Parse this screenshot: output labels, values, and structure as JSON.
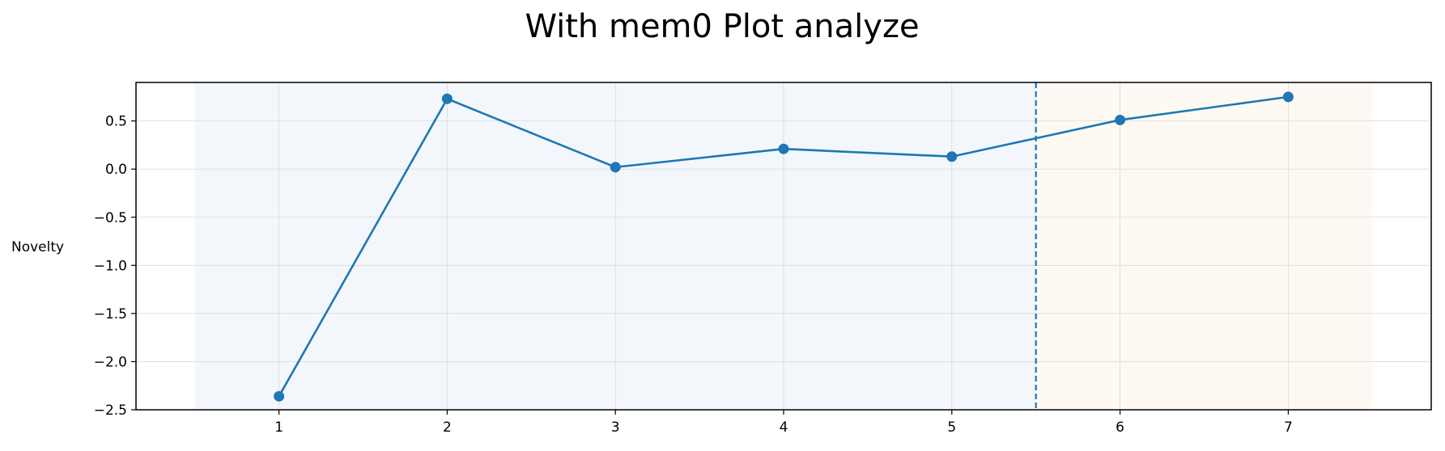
{
  "chart_data": {
    "type": "line",
    "title": "With mem0 Plot analyze",
    "xlabel": "",
    "ylabel": "Novelty",
    "x": [
      1,
      2,
      3,
      4,
      5,
      6,
      7
    ],
    "series": [
      {
        "values": [
          -2.36,
          0.73,
          0.02,
          0.21,
          0.13,
          0.51,
          0.75
        ]
      }
    ],
    "xlim": [
      0.15,
      7.85
    ],
    "ylim": [
      -2.5,
      0.9
    ],
    "xticks": [
      1,
      2,
      3,
      4,
      5,
      6,
      7
    ],
    "xtick_labels": [
      "1",
      "2",
      "3",
      "4",
      "5",
      "6",
      "7"
    ],
    "yticks": [
      -2.5,
      -2.0,
      -1.5,
      -1.0,
      -0.5,
      0.0,
      0.5
    ],
    "ytick_labels": [
      "−2.5",
      "−2.0",
      "−1.5",
      "−1.0",
      "−0.5",
      "0.0",
      "0.5"
    ],
    "grid": true,
    "shaded_regions": [
      {
        "from": 0.5,
        "to": 5.5,
        "color": "#f3f7fc"
      },
      {
        "from": 5.5,
        "to": 7.5,
        "color": "#fef9f3"
      }
    ],
    "vertical_line": {
      "x": 5.5,
      "style": "dashed",
      "color": "#1f77b4"
    },
    "line_color": "#1f77b4"
  }
}
